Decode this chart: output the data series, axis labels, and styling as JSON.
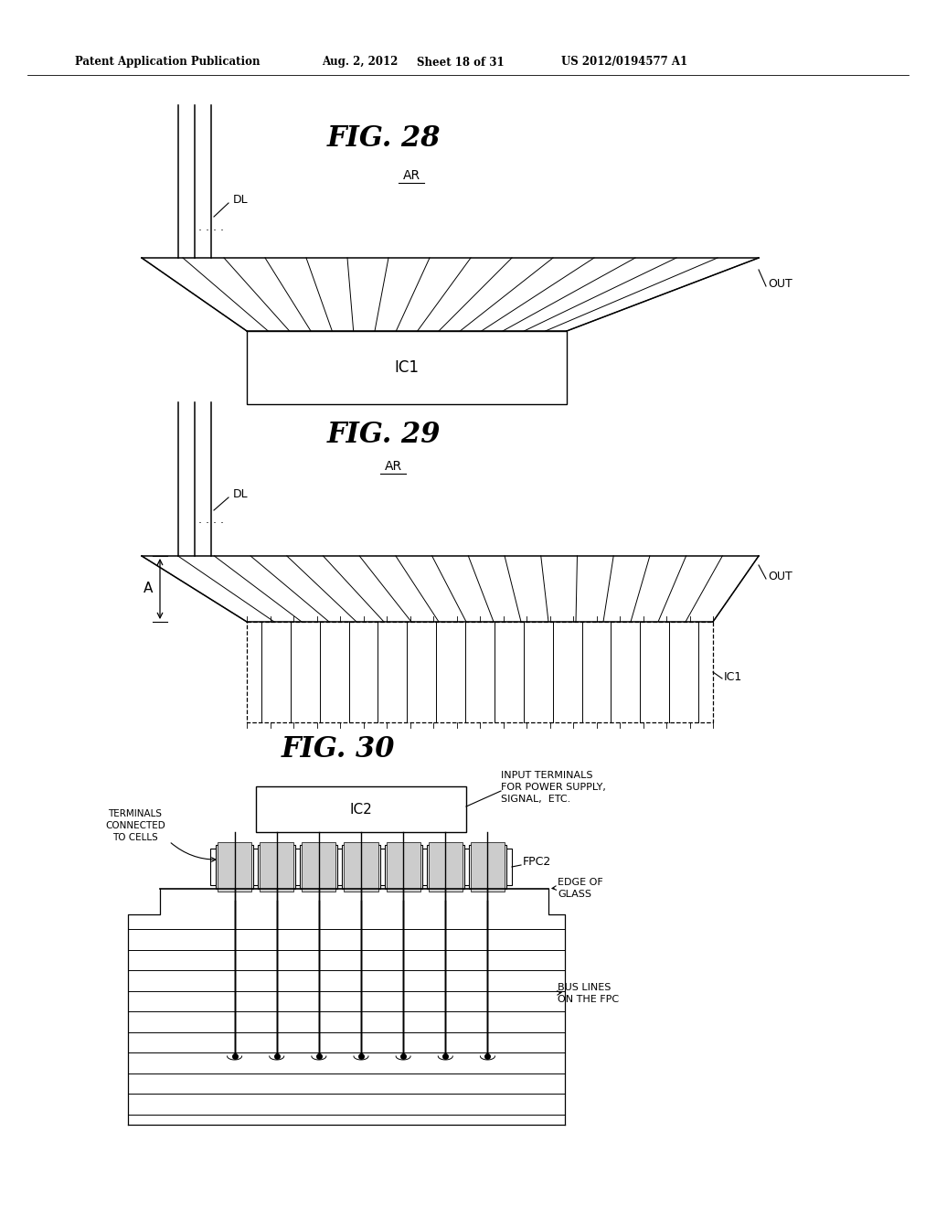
{
  "bg_color": "#ffffff",
  "header_text": "Patent Application Publication",
  "header_date": "Aug. 2, 2012",
  "header_sheet": "Sheet 18 of 31",
  "header_patent": "US 2012/0194577 A1",
  "fig28_title": "FIG. 28",
  "fig29_title": "FIG. 29",
  "fig30_title": "FIG. 30"
}
